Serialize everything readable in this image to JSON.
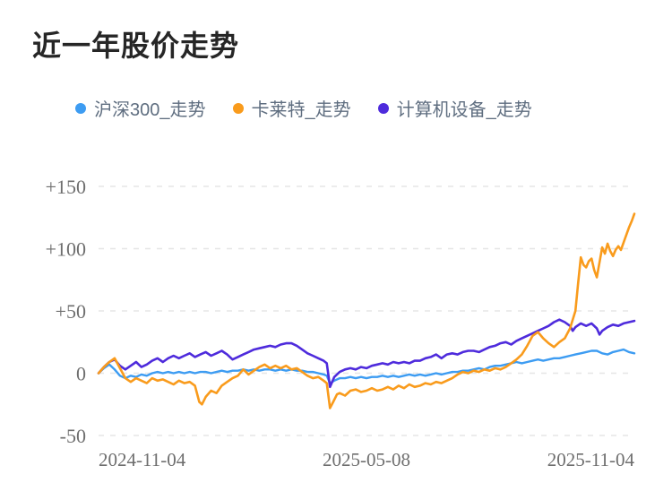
{
  "colors": {
    "background": "#ffffff",
    "title": "#262626",
    "legend_text": "#5f6e80",
    "axis_text": "#6e6e6e",
    "gridline": "#e6e6e6"
  },
  "chart_data": {
    "type": "line",
    "title": "近一年股价走势",
    "legend_position": "top",
    "grid": "horizontal-dashed",
    "unit": "percent_change",
    "x_axis": {
      "ticks": [
        "2024-11-04",
        "2025-05-08",
        "2025-11-04"
      ],
      "range_note": "x values in points are percent of the date span 2024-11-04 to 2025-11-04"
    },
    "y_axis": {
      "range": [
        -50,
        150
      ],
      "ticks": [
        {
          "label": "+150",
          "value": 150
        },
        {
          "label": "+100",
          "value": 100
        },
        {
          "label": "+50",
          "value": 50
        },
        {
          "label": "0",
          "value": 0
        },
        {
          "label": "-50",
          "value": -50
        }
      ]
    },
    "series": [
      {
        "name": "沪深300_走势",
        "color": "#3D9CF2",
        "stroke_width": 2.4,
        "points": [
          [
            0,
            0
          ],
          [
            1,
            4
          ],
          [
            2,
            7
          ],
          [
            3,
            3
          ],
          [
            4,
            -2
          ],
          [
            5,
            -4
          ],
          [
            6,
            -2
          ],
          [
            7,
            -3
          ],
          [
            8,
            -1
          ],
          [
            9,
            -2
          ],
          [
            10,
            0
          ],
          [
            11,
            1
          ],
          [
            12,
            0
          ],
          [
            13,
            1
          ],
          [
            14,
            0
          ],
          [
            15,
            1
          ],
          [
            16,
            0
          ],
          [
            17,
            1
          ],
          [
            18,
            0
          ],
          [
            19,
            1
          ],
          [
            20,
            1
          ],
          [
            21,
            0
          ],
          [
            22,
            1
          ],
          [
            23,
            2
          ],
          [
            24,
            1
          ],
          [
            25,
            2
          ],
          [
            26,
            2
          ],
          [
            27,
            3
          ],
          [
            28,
            2
          ],
          [
            29,
            3
          ],
          [
            30,
            2
          ],
          [
            31,
            3
          ],
          [
            32,
            3
          ],
          [
            33,
            2
          ],
          [
            34,
            3
          ],
          [
            35,
            2
          ],
          [
            36,
            3
          ],
          [
            37,
            2
          ],
          [
            38,
            2
          ],
          [
            39,
            1
          ],
          [
            40,
            1
          ],
          [
            41,
            0
          ],
          [
            42,
            -1
          ],
          [
            42.6,
            -2
          ],
          [
            43.2,
            -8
          ],
          [
            44,
            -6
          ],
          [
            45,
            -4
          ],
          [
            46,
            -4
          ],
          [
            47,
            -3
          ],
          [
            48,
            -4
          ],
          [
            49,
            -3
          ],
          [
            50,
            -4
          ],
          [
            51,
            -3
          ],
          [
            52,
            -3
          ],
          [
            53,
            -2
          ],
          [
            54,
            -3
          ],
          [
            55,
            -2
          ],
          [
            56,
            -3
          ],
          [
            57,
            -2
          ],
          [
            58,
            -1
          ],
          [
            59,
            -2
          ],
          [
            60,
            -1
          ],
          [
            61,
            -2
          ],
          [
            62,
            -1
          ],
          [
            63,
            0
          ],
          [
            64,
            -1
          ],
          [
            65,
            0
          ],
          [
            66,
            1
          ],
          [
            67,
            1
          ],
          [
            68,
            2
          ],
          [
            69,
            2
          ],
          [
            70,
            3
          ],
          [
            71,
            4
          ],
          [
            72,
            3
          ],
          [
            73,
            5
          ],
          [
            74,
            6
          ],
          [
            75,
            6
          ],
          [
            76,
            7
          ],
          [
            77,
            8
          ],
          [
            78,
            9
          ],
          [
            79,
            8
          ],
          [
            80,
            9
          ],
          [
            81,
            10
          ],
          [
            82,
            11
          ],
          [
            83,
            10
          ],
          [
            84,
            11
          ],
          [
            85,
            12
          ],
          [
            86,
            12
          ],
          [
            87,
            13
          ],
          [
            88,
            14
          ],
          [
            89,
            15
          ],
          [
            90,
            16
          ],
          [
            91,
            17
          ],
          [
            92,
            18
          ],
          [
            93,
            18
          ],
          [
            94,
            16
          ],
          [
            95,
            15
          ],
          [
            96,
            17
          ],
          [
            97,
            18
          ],
          [
            98,
            19
          ],
          [
            99,
            17
          ],
          [
            100,
            16
          ]
        ]
      },
      {
        "name": "卡莱特_走势",
        "color": "#F99B1C",
        "stroke_width": 2.6,
        "points": [
          [
            0,
            0
          ],
          [
            1,
            5
          ],
          [
            2,
            9
          ],
          [
            3,
            12
          ],
          [
            4,
            4
          ],
          [
            5,
            -4
          ],
          [
            6,
            -7
          ],
          [
            7,
            -4
          ],
          [
            8,
            -6
          ],
          [
            9,
            -8
          ],
          [
            10,
            -4
          ],
          [
            11,
            -6
          ],
          [
            12,
            -5
          ],
          [
            13,
            -7
          ],
          [
            14,
            -9
          ],
          [
            15,
            -6
          ],
          [
            16,
            -8
          ],
          [
            17,
            -7
          ],
          [
            18,
            -10
          ],
          [
            18.8,
            -23
          ],
          [
            19.3,
            -25
          ],
          [
            20,
            -19
          ],
          [
            21,
            -14
          ],
          [
            22,
            -16
          ],
          [
            23,
            -10
          ],
          [
            24,
            -7
          ],
          [
            25,
            -4
          ],
          [
            26,
            -2
          ],
          [
            27,
            3
          ],
          [
            28,
            -1
          ],
          [
            29,
            2
          ],
          [
            30,
            5
          ],
          [
            31,
            7
          ],
          [
            32,
            4
          ],
          [
            33,
            6
          ],
          [
            34,
            4
          ],
          [
            35,
            6
          ],
          [
            36,
            3
          ],
          [
            37,
            4
          ],
          [
            38,
            1
          ],
          [
            39,
            -2
          ],
          [
            40,
            -4
          ],
          [
            41,
            -3
          ],
          [
            42,
            -6
          ],
          [
            42.6,
            -8
          ],
          [
            43.2,
            -28
          ],
          [
            43.8,
            -23
          ],
          [
            44.5,
            -17
          ],
          [
            45,
            -16
          ],
          [
            46,
            -18
          ],
          [
            47,
            -14
          ],
          [
            48,
            -13
          ],
          [
            49,
            -15
          ],
          [
            50,
            -14
          ],
          [
            51,
            -12
          ],
          [
            52,
            -14
          ],
          [
            53,
            -13
          ],
          [
            54,
            -11
          ],
          [
            55,
            -13
          ],
          [
            56,
            -10
          ],
          [
            57,
            -12
          ],
          [
            58,
            -9
          ],
          [
            59,
            -11
          ],
          [
            60,
            -10
          ],
          [
            61,
            -8
          ],
          [
            62,
            -9
          ],
          [
            63,
            -7
          ],
          [
            64,
            -8
          ],
          [
            65,
            -6
          ],
          [
            66,
            -4
          ],
          [
            67,
            -1
          ],
          [
            68,
            1
          ],
          [
            69,
            0
          ],
          [
            70,
            2
          ],
          [
            71,
            1
          ],
          [
            72,
            3
          ],
          [
            73,
            2
          ],
          [
            74,
            4
          ],
          [
            75,
            3
          ],
          [
            76,
            5
          ],
          [
            77,
            8
          ],
          [
            78,
            11
          ],
          [
            79,
            15
          ],
          [
            80,
            22
          ],
          [
            81,
            30
          ],
          [
            82,
            33
          ],
          [
            83,
            28
          ],
          [
            84,
            24
          ],
          [
            85,
            21
          ],
          [
            86,
            25
          ],
          [
            87,
            28
          ],
          [
            88,
            36
          ],
          [
            89,
            50
          ],
          [
            89.5,
            72
          ],
          [
            90,
            93
          ],
          [
            90.5,
            87
          ],
          [
            91,
            85
          ],
          [
            91.5,
            90
          ],
          [
            92,
            92
          ],
          [
            92.5,
            83
          ],
          [
            93,
            77
          ],
          [
            93.5,
            89
          ],
          [
            94,
            101
          ],
          [
            94.5,
            96
          ],
          [
            95,
            104
          ],
          [
            95.5,
            98
          ],
          [
            96,
            94
          ],
          [
            96.5,
            99
          ],
          [
            97,
            102
          ],
          [
            97.5,
            99
          ],
          [
            98,
            105
          ],
          [
            98.5,
            111
          ],
          [
            99,
            117
          ],
          [
            99.5,
            122
          ],
          [
            100,
            128
          ]
        ]
      },
      {
        "name": "计算机设备_走势",
        "color": "#4E2BDC",
        "stroke_width": 2.6,
        "points": [
          [
            0,
            0
          ],
          [
            1,
            5
          ],
          [
            2,
            9
          ],
          [
            3,
            11
          ],
          [
            4,
            6
          ],
          [
            5,
            3
          ],
          [
            6,
            6
          ],
          [
            7,
            9
          ],
          [
            8,
            5
          ],
          [
            9,
            7
          ],
          [
            10,
            10
          ],
          [
            11,
            12
          ],
          [
            12,
            9
          ],
          [
            13,
            12
          ],
          [
            14,
            14
          ],
          [
            15,
            12
          ],
          [
            16,
            14
          ],
          [
            17,
            16
          ],
          [
            18,
            13
          ],
          [
            19,
            15
          ],
          [
            20,
            17
          ],
          [
            21,
            14
          ],
          [
            22,
            16
          ],
          [
            23,
            18
          ],
          [
            24,
            15
          ],
          [
            25,
            11
          ],
          [
            26,
            13
          ],
          [
            27,
            15
          ],
          [
            28,
            17
          ],
          [
            29,
            19
          ],
          [
            30,
            20
          ],
          [
            31,
            21
          ],
          [
            32,
            22
          ],
          [
            33,
            21
          ],
          [
            34,
            23
          ],
          [
            35,
            24
          ],
          [
            36,
            24
          ],
          [
            37,
            22
          ],
          [
            38,
            19
          ],
          [
            39,
            16
          ],
          [
            40,
            14
          ],
          [
            41,
            12
          ],
          [
            42,
            10
          ],
          [
            42.6,
            8
          ],
          [
            43.2,
            -11
          ],
          [
            44,
            -3
          ],
          [
            45,
            1
          ],
          [
            46,
            3
          ],
          [
            47,
            4
          ],
          [
            48,
            3
          ],
          [
            49,
            5
          ],
          [
            50,
            4
          ],
          [
            51,
            6
          ],
          [
            52,
            7
          ],
          [
            53,
            8
          ],
          [
            54,
            7
          ],
          [
            55,
            9
          ],
          [
            56,
            8
          ],
          [
            57,
            9
          ],
          [
            58,
            8
          ],
          [
            59,
            10
          ],
          [
            60,
            10
          ],
          [
            61,
            12
          ],
          [
            62,
            13
          ],
          [
            63,
            15
          ],
          [
            64,
            12
          ],
          [
            65,
            15
          ],
          [
            66,
            16
          ],
          [
            67,
            15
          ],
          [
            68,
            17
          ],
          [
            69,
            18
          ],
          [
            70,
            18
          ],
          [
            71,
            17
          ],
          [
            72,
            19
          ],
          [
            73,
            21
          ],
          [
            74,
            22
          ],
          [
            75,
            24
          ],
          [
            76,
            25
          ],
          [
            77,
            23
          ],
          [
            78,
            26
          ],
          [
            79,
            28
          ],
          [
            80,
            30
          ],
          [
            81,
            32
          ],
          [
            82,
            34
          ],
          [
            83,
            36
          ],
          [
            84,
            38
          ],
          [
            85,
            41
          ],
          [
            86,
            43
          ],
          [
            87,
            41
          ],
          [
            88,
            38
          ],
          [
            88.5,
            34
          ],
          [
            89,
            37
          ],
          [
            90,
            40
          ],
          [
            91,
            38
          ],
          [
            92,
            40
          ],
          [
            93,
            36
          ],
          [
            93.5,
            31
          ],
          [
            94,
            34
          ],
          [
            95,
            37
          ],
          [
            96,
            39
          ],
          [
            97,
            38
          ],
          [
            98,
            40
          ],
          [
            99,
            41
          ],
          [
            100,
            42
          ]
        ]
      }
    ]
  }
}
